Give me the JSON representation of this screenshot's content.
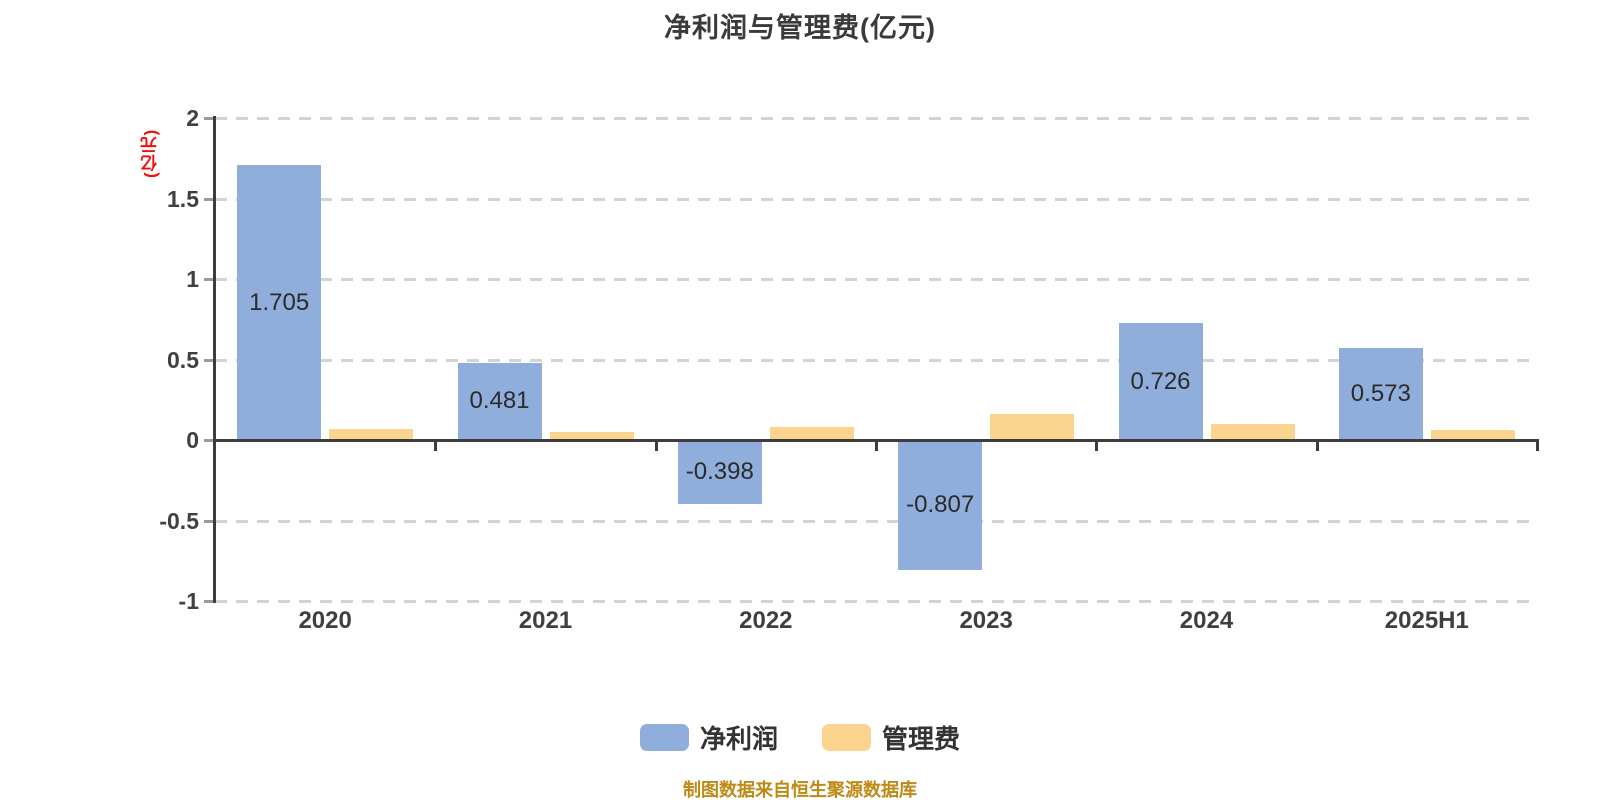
{
  "title": "净利润与管理费(亿元)",
  "y_axis": {
    "unit_label": "(亿元)",
    "unit_label_color": "#f40d0d",
    "tick_labels": [
      "2",
      "1.5",
      "1",
      "0.5",
      "0",
      "-0.5",
      "-1"
    ],
    "tick_values": [
      2,
      1.5,
      1,
      0.5,
      0,
      -0.5,
      -1
    ]
  },
  "chart_data": {
    "type": "bar",
    "title": "净利润与管理费(亿元)",
    "categories": [
      "2020",
      "2021",
      "2022",
      "2023",
      "2024",
      "2025H1"
    ],
    "series": [
      {
        "key": "net-profit",
        "name": "净利润",
        "color": "#8fAedb",
        "values": [
          1.705,
          0.481,
          -0.398,
          -0.807,
          0.726,
          0.573
        ],
        "labels": [
          "1.705",
          "0.481",
          "-0.398",
          "-0.807",
          "0.726",
          "0.573"
        ]
      },
      {
        "key": "management-fee",
        "name": "管理费",
        "color": "#fbd58f",
        "values": [
          0.07,
          0.05,
          0.08,
          0.16,
          0.1,
          0.06
        ],
        "labels": [
          "",
          "",
          "",
          "",
          "",
          ""
        ]
      }
    ],
    "ylabel": "(亿元)",
    "ylim": [
      -1,
      2
    ],
    "grid": "horizontal-dashed",
    "legend_position": "bottom"
  },
  "legend": {
    "items": [
      {
        "key": "net-profit",
        "label": "净利润",
        "color": "#8fAedb"
      },
      {
        "key": "management-fee",
        "label": "管理费",
        "color": "#fbd58f"
      }
    ]
  },
  "footer": {
    "caption": "制图数据来自恒生聚源数据库",
    "color": "#bd8a15"
  },
  "colors": {
    "background": "#ffffff",
    "axis": "#3d3d3d",
    "gridline": "#d3d3d3",
    "tick_label": "#404040",
    "value_label": "#2b2b2b",
    "title": "#3a3a3a"
  }
}
